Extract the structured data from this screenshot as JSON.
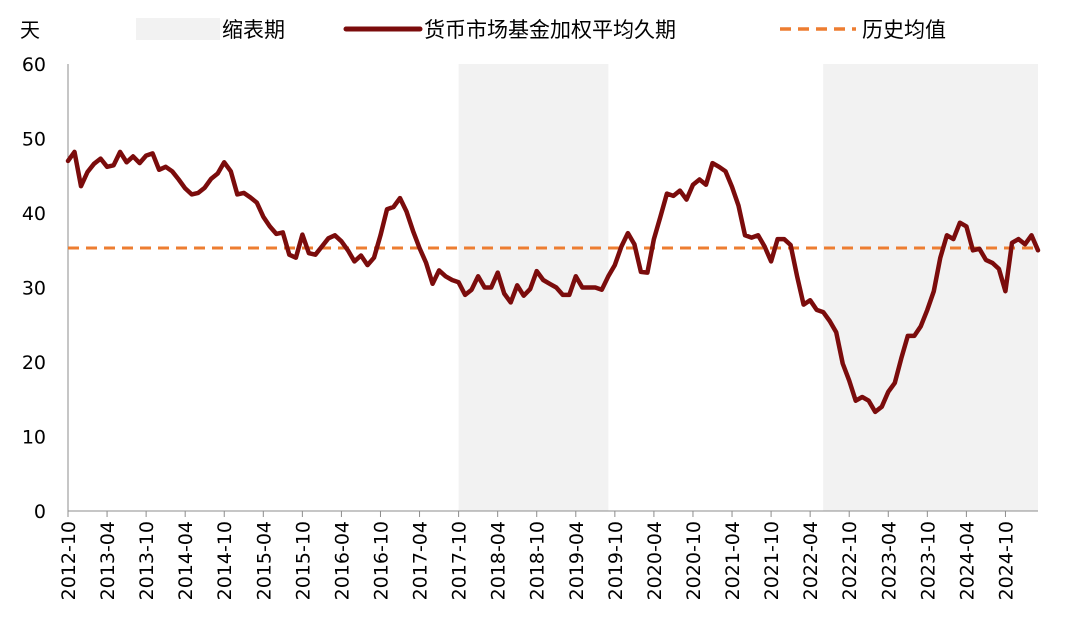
{
  "chart_data": {
    "type": "line",
    "ylabel": "天",
    "ylim": [
      0,
      60
    ],
    "yticks": [
      0,
      10,
      20,
      30,
      40,
      50,
      60
    ],
    "xrange": [
      "2012-10",
      "2025-03"
    ],
    "xtick_labels": [
      "2012-10",
      "2013-04",
      "2013-10",
      "2014-04",
      "2014-10",
      "2015-04",
      "2015-10",
      "2016-04",
      "2016-10",
      "2017-04",
      "2017-10",
      "2018-04",
      "2018-10",
      "2019-04",
      "2019-10",
      "2020-04",
      "2020-10",
      "2021-04",
      "2021-10",
      "2022-04",
      "2022-10",
      "2023-04",
      "2023-10",
      "2024-04",
      "2024-10"
    ],
    "legend": {
      "placement": "top",
      "items": [
        {
          "key": "shade",
          "label": "缩表期",
          "kind": "area",
          "color": "#f2f2f2"
        },
        {
          "key": "series",
          "label": "货币市场基金加权平均久期",
          "kind": "line",
          "color": "#7b0c0c"
        },
        {
          "key": "mean",
          "label": "历史均值",
          "kind": "dashed",
          "color": "#ed7d31"
        }
      ]
    },
    "shaded_periods": [
      {
        "start": "2017-10",
        "end": "2019-09"
      },
      {
        "start": "2022-06",
        "end": "2025-03"
      }
    ],
    "mean_value": 35.3,
    "series": [
      {
        "name": "货币市场基金加权平均久期",
        "color": "#7b0c0c",
        "points": [
          [
            "2012-10",
            47
          ],
          [
            "2012-11",
            48.2
          ],
          [
            "2012-12",
            43.6
          ],
          [
            "2013-01",
            45.5
          ],
          [
            "2013-02",
            46.6
          ],
          [
            "2013-03",
            47.3
          ],
          [
            "2013-04",
            46.2
          ],
          [
            "2013-05",
            46.4
          ],
          [
            "2013-06",
            48.2
          ],
          [
            "2013-07",
            46.8
          ],
          [
            "2013-08",
            47.6
          ],
          [
            "2013-09",
            46.7
          ],
          [
            "2013-10",
            47.7
          ],
          [
            "2013-11",
            48
          ],
          [
            "2013-12",
            45.8
          ],
          [
            "2014-01",
            46.2
          ],
          [
            "2014-02",
            45.6
          ],
          [
            "2014-03",
            44.5
          ],
          [
            "2014-04",
            43.3
          ],
          [
            "2014-05",
            42.5
          ],
          [
            "2014-06",
            42.7
          ],
          [
            "2014-07",
            43.4
          ],
          [
            "2014-08",
            44.6
          ],
          [
            "2014-09",
            45.3
          ],
          [
            "2014-10",
            46.8
          ],
          [
            "2014-11",
            45.6
          ],
          [
            "2014-12",
            42.5
          ],
          [
            "2015-01",
            42.7
          ],
          [
            "2015-02",
            42.1
          ],
          [
            "2015-03",
            41.4
          ],
          [
            "2015-04",
            39.5
          ],
          [
            "2015-05",
            38.2
          ],
          [
            "2015-06",
            37.2
          ],
          [
            "2015-07",
            37.4
          ],
          [
            "2015-08",
            34.4
          ],
          [
            "2015-09",
            34
          ],
          [
            "2015-10",
            37.1
          ],
          [
            "2015-11",
            34.6
          ],
          [
            "2015-12",
            34.4
          ],
          [
            "2016-01",
            35.5
          ],
          [
            "2016-02",
            36.6
          ],
          [
            "2016-03",
            37
          ],
          [
            "2016-04",
            36.2
          ],
          [
            "2016-05",
            35
          ],
          [
            "2016-06",
            33.5
          ],
          [
            "2016-07",
            34.3
          ],
          [
            "2016-08",
            33
          ],
          [
            "2016-09",
            34
          ],
          [
            "2016-10",
            37
          ],
          [
            "2016-11",
            40.5
          ],
          [
            "2016-12",
            40.8
          ],
          [
            "2017-01",
            42
          ],
          [
            "2017-02",
            40.2
          ],
          [
            "2017-03",
            37.6
          ],
          [
            "2017-04",
            35.3
          ],
          [
            "2017-05",
            33.3
          ],
          [
            "2017-06",
            30.5
          ],
          [
            "2017-07",
            32.3
          ],
          [
            "2017-08",
            31.5
          ],
          [
            "2017-09",
            31
          ],
          [
            "2017-10",
            30.7
          ],
          [
            "2017-11",
            29
          ],
          [
            "2017-12",
            29.7
          ],
          [
            "2018-01",
            31.5
          ],
          [
            "2018-02",
            30
          ],
          [
            "2018-03",
            30
          ],
          [
            "2018-04",
            32
          ],
          [
            "2018-05",
            29.2
          ],
          [
            "2018-06",
            28
          ],
          [
            "2018-07",
            30.3
          ],
          [
            "2018-08",
            28.9
          ],
          [
            "2018-09",
            29.8
          ],
          [
            "2018-10",
            32.2
          ],
          [
            "2018-11",
            31
          ],
          [
            "2018-12",
            30.5
          ],
          [
            "2019-01",
            30
          ],
          [
            "2019-02",
            29
          ],
          [
            "2019-03",
            29
          ],
          [
            "2019-04",
            31.5
          ],
          [
            "2019-05",
            30
          ],
          [
            "2019-06",
            30
          ],
          [
            "2019-07",
            30
          ],
          [
            "2019-08",
            29.7
          ],
          [
            "2019-09",
            31.5
          ],
          [
            "2019-10",
            33
          ],
          [
            "2019-11",
            35.5
          ],
          [
            "2019-12",
            37.3
          ],
          [
            "2020-01",
            35.8
          ],
          [
            "2020-02",
            32.1
          ],
          [
            "2020-03",
            32
          ],
          [
            "2020-04",
            36.5
          ],
          [
            "2020-05",
            39.5
          ],
          [
            "2020-06",
            42.6
          ],
          [
            "2020-07",
            42.3
          ],
          [
            "2020-08",
            43
          ],
          [
            "2020-09",
            41.8
          ],
          [
            "2020-10",
            43.8
          ],
          [
            "2020-11",
            44.5
          ],
          [
            "2020-12",
            43.8
          ],
          [
            "2021-01",
            46.7
          ],
          [
            "2021-02",
            46.2
          ],
          [
            "2021-03",
            45.6
          ],
          [
            "2021-04",
            43.5
          ],
          [
            "2021-05",
            41
          ],
          [
            "2021-06",
            37
          ],
          [
            "2021-07",
            36.7
          ],
          [
            "2021-08",
            37
          ],
          [
            "2021-09",
            35.5
          ],
          [
            "2021-10",
            33.5
          ],
          [
            "2021-11",
            36.5
          ],
          [
            "2021-12",
            36.5
          ],
          [
            "2022-01",
            35.7
          ],
          [
            "2022-02",
            31.5
          ],
          [
            "2022-03",
            27.7
          ],
          [
            "2022-04",
            28.3
          ],
          [
            "2022-05",
            27
          ],
          [
            "2022-06",
            26.7
          ],
          [
            "2022-07",
            25.5
          ],
          [
            "2022-08",
            24
          ],
          [
            "2022-09",
            19.8
          ],
          [
            "2022-10",
            17.5
          ],
          [
            "2022-11",
            14.8
          ],
          [
            "2022-12",
            15.3
          ],
          [
            "2023-01",
            14.8
          ],
          [
            "2023-02",
            13.3
          ],
          [
            "2023-03",
            14
          ],
          [
            "2023-04",
            16
          ],
          [
            "2023-05",
            17.2
          ],
          [
            "2023-06",
            20.5
          ],
          [
            "2023-07",
            23.5
          ],
          [
            "2023-08",
            23.5
          ],
          [
            "2023-09",
            24.8
          ],
          [
            "2023-10",
            27
          ],
          [
            "2023-11",
            29.5
          ],
          [
            "2023-12",
            34
          ],
          [
            "2024-01",
            37
          ],
          [
            "2024-02",
            36.5
          ],
          [
            "2024-03",
            38.7
          ],
          [
            "2024-04",
            38.2
          ],
          [
            "2024-05",
            35
          ],
          [
            "2024-06",
            35.2
          ],
          [
            "2024-07",
            33.7
          ],
          [
            "2024-08",
            33.3
          ],
          [
            "2024-09",
            32.5
          ],
          [
            "2024-10",
            29.5
          ],
          [
            "2024-11",
            36
          ],
          [
            "2024-12",
            36.5
          ],
          [
            "2025-01",
            35.8
          ],
          [
            "2025-02",
            37
          ],
          [
            "2025-03",
            35
          ]
        ]
      }
    ]
  }
}
